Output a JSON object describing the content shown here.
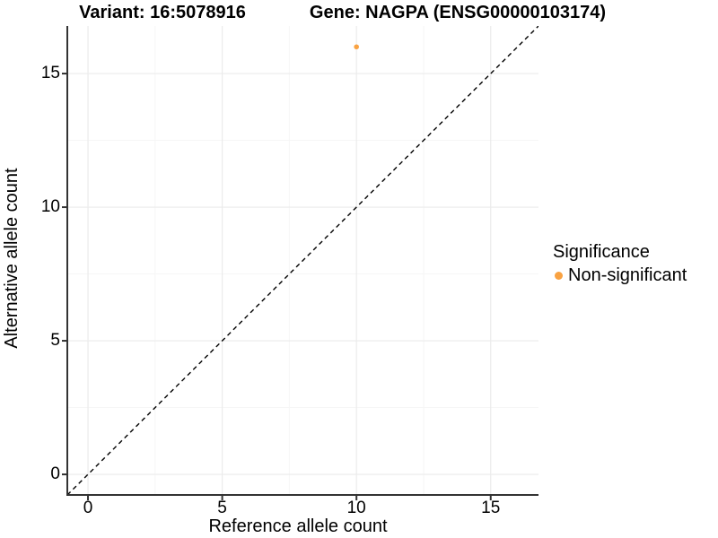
{
  "chart_data": {
    "type": "scatter",
    "title_left": "Variant: 16:5078916",
    "title_right": "Gene: NAGPA (ENSG00000103174)",
    "xlabel": "Reference allele count",
    "ylabel": "Alternative allele count",
    "xlim": [
      -0.77,
      16.78
    ],
    "ylim": [
      -0.77,
      16.78
    ],
    "x_ticks": [
      0,
      5,
      10,
      15
    ],
    "y_ticks": [
      0,
      5,
      10,
      15
    ],
    "x_minor_ticks": [
      2.5,
      7.5,
      12.5
    ],
    "y_minor_ticks": [
      2.5,
      7.5,
      12.5
    ],
    "grid": "major and minor gridlines on white background",
    "points": [
      {
        "x": 10,
        "y": 16,
        "series": "Non-significant"
      }
    ],
    "abline": {
      "slope": 1,
      "intercept": 0,
      "style": "dashed",
      "note": "identity line y = x"
    },
    "legend": {
      "title": "Significance",
      "position": "right",
      "items": [
        {
          "label": "Non-significant",
          "color": "#F9A242"
        }
      ]
    },
    "colors": {
      "point": "#F9A242",
      "abline": "#000000",
      "grid_major": "#EBEBEB",
      "grid_minor": "#F6F6F6",
      "axis_line": "#333333",
      "text": "#000000"
    }
  }
}
